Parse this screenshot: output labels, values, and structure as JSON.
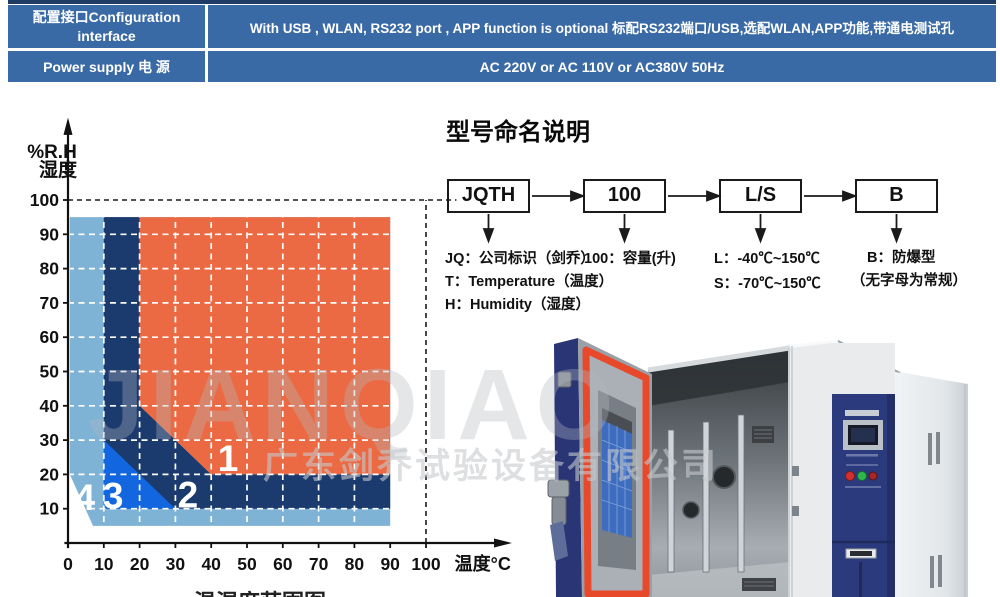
{
  "spec_table": {
    "row1": {
      "label_line1": "配置接口Configuration",
      "label_line2": "interface",
      "value": "With USB , WLAN, RS232  port , APP function is optional 标配RS232端口/USB,选配WLAN,APP功能,带通电测试孔"
    },
    "row2": {
      "label": "Power supply 电 源",
      "value": "AC 220V or AC 110V or AC380V 50Hz"
    }
  },
  "model_naming": {
    "title": "型号命名说明",
    "boxes": [
      "JQTH",
      "100",
      "L/S",
      "B"
    ],
    "notes_col1": [
      "JQ：公司标识（剑乔）",
      "T：Temperature（温度）",
      "H：Humidity（湿度）"
    ],
    "notes_col2": [
      "100：容量(升)"
    ],
    "notes_col3": [
      "L：-40℃~150℃",
      "S：-70℃~150℃"
    ],
    "notes_col4": [
      "B：防爆型",
      "（无字母为常规）"
    ]
  },
  "chart_data": {
    "type": "area",
    "title": "温湿度范围图",
    "xlabel": "温度°C",
    "ylabel_line1": "%R.H",
    "ylabel_line2": "湿度",
    "x_ticks": [
      0,
      10,
      20,
      30,
      40,
      50,
      60,
      70,
      80,
      90,
      100
    ],
    "y_ticks": [
      10,
      20,
      30,
      40,
      50,
      60,
      70,
      80,
      90,
      100
    ],
    "xlim": [
      0,
      124
    ],
    "ylim": [
      0,
      124
    ],
    "grid_step": 10,
    "grid": "white-dashed-every-10",
    "dashed_guides": {
      "x": 100,
      "y": 100
    },
    "regions": [
      {
        "label": "4",
        "color": "#7FB3D6",
        "points": [
          [
            0.5,
            20
          ],
          [
            0.5,
            95
          ],
          [
            90,
            95
          ],
          [
            90,
            5
          ],
          [
            7,
            5
          ]
        ],
        "label_at": [
          4.7,
          13.4
        ]
      },
      {
        "label": "2",
        "color": "#1B3A6D",
        "points": [
          [
            10,
            10
          ],
          [
            10,
            95
          ],
          [
            20,
            95
          ],
          [
            20,
            40
          ],
          [
            40,
            20
          ],
          [
            90,
            20
          ],
          [
            90,
            10
          ]
        ],
        "label_at": [
          33.5,
          14.2
        ]
      },
      {
        "label": "1",
        "color": "#EC6A43",
        "points": [
          [
            20,
            95
          ],
          [
            90,
            95
          ],
          [
            90,
            20
          ],
          [
            40,
            20
          ],
          [
            20,
            40
          ]
        ],
        "label_at": [
          44.7,
          24.8
        ]
      },
      {
        "label": "3",
        "color": "#1266DF",
        "points": [
          [
            10,
            30
          ],
          [
            30,
            10
          ],
          [
            10,
            10
          ]
        ],
        "label_at": [
          12.6,
          13.8
        ]
      }
    ]
  },
  "watermark": {
    "brand": "JIANQIAO",
    "company": "广东剑乔试验设备有限公司"
  },
  "colors": {
    "table_blue": "#3A6AA6",
    "table_top_strip": "#1E3C64",
    "region_orange": "#EC6A43",
    "region_navy": "#1B3A6D",
    "region_lightblue": "#7FB3D6",
    "region_blue": "#1266DF",
    "door_navy": "#2A3576",
    "gasket_red": "#E8492B"
  }
}
